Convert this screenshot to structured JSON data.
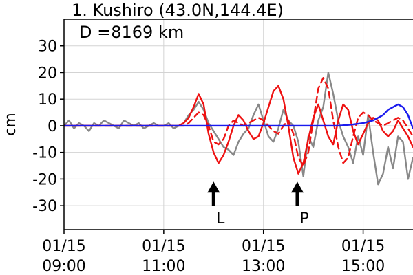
{
  "chart_data": {
    "type": "line",
    "title": "1. Kushiro (43.0N,144.4E)",
    "subtitle": "D =8169 km",
    "xlabel": "",
    "ylabel": "cm",
    "xlim": [
      9.0,
      16.0
    ],
    "ylim": [
      -39,
      40
    ],
    "grid": true,
    "legend": "none",
    "x_ticks": [
      {
        "x": 9.0,
        "line1": "01/15",
        "line2": "09:00"
      },
      {
        "x": 11.0,
        "line1": "01/15",
        "line2": "11:00"
      },
      {
        "x": 13.0,
        "line1": "01/15",
        "line2": "13:00"
      },
      {
        "x": 15.0,
        "line1": "01/15",
        "line2": "15:00"
      }
    ],
    "y_ticks": [
      -30,
      -20,
      -10,
      0,
      10,
      20,
      30
    ],
    "annotations": [
      {
        "label": "L",
        "x": 12.0,
        "y_tip": -21,
        "y_base": -30
      },
      {
        "label": "P",
        "x": 13.68,
        "y_tip": -21,
        "y_base": -30
      }
    ],
    "series": [
      {
        "color": "#888888",
        "style": "solid",
        "x": [
          9.0,
          9.1,
          9.2,
          9.3,
          9.4,
          9.5,
          9.6,
          9.7,
          9.8,
          9.9,
          10.0,
          10.1,
          10.2,
          10.3,
          10.4,
          10.5,
          10.6,
          10.7,
          10.8,
          10.9,
          11.0,
          11.1,
          11.2,
          11.3,
          11.4,
          11.5,
          11.6,
          11.7,
          11.8,
          11.9,
          12.0,
          12.1,
          12.2,
          12.3,
          12.4,
          12.5,
          12.6,
          12.7,
          12.8,
          12.9,
          13.0,
          13.1,
          13.2,
          13.3,
          13.4,
          13.5,
          13.6,
          13.7,
          13.8,
          13.9,
          14.0,
          14.1,
          14.2,
          14.3,
          14.4,
          14.5,
          14.6,
          14.7,
          14.8,
          14.9,
          15.0,
          15.1,
          15.2,
          15.3,
          15.4,
          15.5,
          15.6,
          15.7,
          15.8,
          15.9,
          16.0
        ],
        "y": [
          0,
          2,
          -1,
          1,
          0,
          -2,
          1,
          0,
          2,
          1,
          0,
          -1,
          2,
          1,
          0,
          1,
          -1,
          0,
          1,
          0,
          0,
          1,
          -1,
          0,
          1,
          4,
          6,
          9,
          6,
          1,
          -2,
          -5,
          -8,
          -9,
          -11,
          -6,
          -3,
          -1,
          4,
          8,
          2,
          -4,
          -6,
          -1,
          6,
          2,
          0,
          -6,
          -19,
          -4,
          -8,
          2,
          7,
          20,
          12,
          2,
          -4,
          -8,
          -14,
          -4,
          -11,
          4,
          -10,
          -22,
          -18,
          -8,
          -16,
          -4,
          -6,
          -20,
          -12
        ]
      },
      {
        "color": "#ee1111",
        "style": "solid",
        "x": [
          9.0,
          9.5,
          10.0,
          10.5,
          11.0,
          11.1,
          11.2,
          11.3,
          11.4,
          11.5,
          11.6,
          11.7,
          11.8,
          11.9,
          12.0,
          12.1,
          12.2,
          12.3,
          12.4,
          12.5,
          12.6,
          12.7,
          12.8,
          12.9,
          13.0,
          13.1,
          13.2,
          13.3,
          13.4,
          13.5,
          13.6,
          13.7,
          13.8,
          13.9,
          14.0,
          14.1,
          14.2,
          14.3,
          14.4,
          14.5,
          14.6,
          14.7,
          14.8,
          14.9,
          15.0,
          15.1,
          15.2,
          15.3,
          15.4,
          15.5,
          15.6,
          15.7,
          15.8,
          15.9,
          16.0
        ],
        "y": [
          0,
          0,
          0,
          0,
          0,
          0,
          0,
          0,
          1,
          3,
          7,
          12,
          8,
          -3,
          -10,
          -14,
          -11,
          -6,
          0,
          4,
          2,
          -2,
          -5,
          -4,
          1,
          7,
          13,
          15,
          10,
          0,
          -12,
          -18,
          -14,
          -5,
          3,
          8,
          2,
          -4,
          -7,
          2,
          8,
          6,
          -2,
          -7,
          -3,
          1,
          3,
          2,
          -2,
          -4,
          -2,
          2,
          -1,
          -4,
          -8
        ]
      },
      {
        "color": "#ee1111",
        "style": "dashed",
        "x": [
          9.0,
          9.5,
          10.0,
          10.5,
          11.0,
          11.2,
          11.4,
          11.5,
          11.6,
          11.7,
          11.8,
          11.9,
          12.0,
          12.1,
          12.2,
          12.3,
          12.4,
          12.5,
          12.6,
          12.7,
          12.8,
          12.9,
          13.0,
          13.1,
          13.2,
          13.3,
          13.4,
          13.5,
          13.6,
          13.7,
          13.8,
          13.9,
          14.0,
          14.1,
          14.2,
          14.3,
          14.4,
          14.5,
          14.6,
          14.7,
          14.8,
          14.9,
          15.0,
          15.1,
          15.2,
          15.3,
          15.4,
          15.5,
          15.6,
          15.7,
          15.8,
          15.9,
          16.0
        ],
        "y": [
          0,
          0,
          0,
          0,
          0,
          0,
          0,
          1,
          3,
          5,
          4,
          0,
          -6,
          -7,
          -5,
          0,
          2,
          1,
          0,
          1,
          2,
          3,
          2,
          0,
          -2,
          -3,
          0,
          2,
          -3,
          -12,
          -15,
          -10,
          2,
          14,
          18,
          14,
          2,
          -8,
          -14,
          -12,
          -4,
          3,
          5,
          4,
          2,
          1,
          0,
          1,
          2,
          3,
          2,
          -1,
          -4
        ]
      },
      {
        "color": "#1a1aee",
        "style": "solid",
        "x": [
          9.0,
          10.0,
          11.0,
          12.0,
          13.0,
          14.0,
          14.5,
          14.8,
          15.0,
          15.2,
          15.4,
          15.5,
          15.6,
          15.7,
          15.8,
          15.9,
          16.0
        ],
        "y": [
          0,
          0,
          0,
          0,
          0,
          0,
          0,
          0.5,
          1,
          2,
          4,
          6,
          7,
          8,
          7,
          4,
          -1
        ]
      }
    ]
  }
}
